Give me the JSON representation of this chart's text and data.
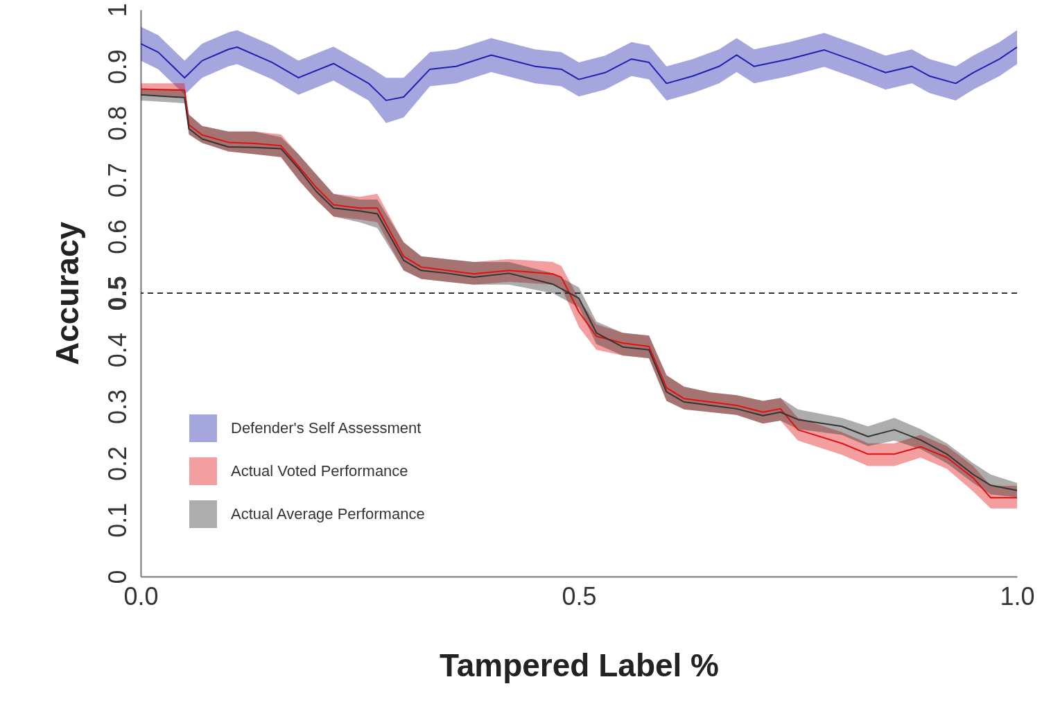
{
  "chart_data": {
    "type": "line",
    "xlabel": "Tampered Label %",
    "ylabel": "Accuracy",
    "xlim": [
      0,
      1
    ],
    "ylim": [
      0,
      1
    ],
    "xticks": [
      {
        "value": 0,
        "label": "0.0"
      },
      0.5,
      {
        "value": 1,
        "label": "1.0"
      }
    ],
    "yticks": [
      0,
      0.1,
      0.2,
      0.3,
      0.4,
      0.5,
      0.6,
      0.7,
      0.8,
      0.9,
      1
    ],
    "grid": false,
    "legend": "bottom left",
    "marker": "none",
    "line_style": "solid",
    "ref_lines": [
      {
        "axis": "y",
        "value": 0.5,
        "line_style": "dashed",
        "color": "#333333"
      }
    ],
    "series": [
      {
        "name": "Defender's Self Assessment",
        "color": "#2020b0",
        "x": [
          0,
          0.02,
          0.05,
          0.07,
          0.1,
          0.11,
          0.15,
          0.18,
          0.22,
          0.26,
          0.28,
          0.3,
          0.33,
          0.36,
          0.4,
          0.45,
          0.48,
          0.5,
          0.53,
          0.56,
          0.58,
          0.6,
          0.63,
          0.66,
          0.68,
          0.7,
          0.74,
          0.78,
          0.82,
          0.85,
          0.88,
          0.9,
          0.93,
          0.95,
          0.98,
          1
        ],
        "values": [
          0.94,
          0.925,
          0.88,
          0.91,
          0.93,
          0.934,
          0.907,
          0.88,
          0.905,
          0.87,
          0.84,
          0.846,
          0.895,
          0.9,
          0.92,
          0.9,
          0.895,
          0.877,
          0.889,
          0.913,
          0.907,
          0.87,
          0.883,
          0.9,
          0.92,
          0.9,
          0.913,
          0.929,
          0.907,
          0.889,
          0.9,
          0.883,
          0.87,
          0.889,
          0.913,
          0.934
        ],
        "lower": [
          0.91,
          0.895,
          0.85,
          0.88,
          0.9,
          0.904,
          0.877,
          0.85,
          0.875,
          0.84,
          0.8,
          0.81,
          0.865,
          0.87,
          0.89,
          0.87,
          0.865,
          0.847,
          0.859,
          0.883,
          0.877,
          0.84,
          0.853,
          0.87,
          0.89,
          0.87,
          0.883,
          0.899,
          0.877,
          0.859,
          0.87,
          0.853,
          0.84,
          0.859,
          0.883,
          0.904
        ],
        "upper": [
          0.97,
          0.955,
          0.91,
          0.94,
          0.96,
          0.964,
          0.937,
          0.91,
          0.935,
          0.9,
          0.88,
          0.88,
          0.925,
          0.93,
          0.95,
          0.93,
          0.925,
          0.907,
          0.919,
          0.943,
          0.937,
          0.9,
          0.913,
          0.93,
          0.95,
          0.93,
          0.943,
          0.959,
          0.937,
          0.919,
          0.93,
          0.913,
          0.9,
          0.919,
          0.943,
          0.964
        ]
      },
      {
        "name": "Actual Voted Performance",
        "color": "#e01010",
        "x": [
          0,
          0.05,
          0.055,
          0.07,
          0.1,
          0.13,
          0.16,
          0.18,
          0.2,
          0.22,
          0.25,
          0.27,
          0.3,
          0.32,
          0.35,
          0.38,
          0.42,
          0.47,
          0.48,
          0.5,
          0.52,
          0.55,
          0.58,
          0.6,
          0.62,
          0.65,
          0.68,
          0.71,
          0.73,
          0.75,
          0.8,
          0.83,
          0.86,
          0.89,
          0.92,
          0.95,
          0.97,
          1
        ],
        "values": [
          0.86,
          0.858,
          0.797,
          0.779,
          0.766,
          0.764,
          0.76,
          0.724,
          0.687,
          0.656,
          0.65,
          0.65,
          0.565,
          0.546,
          0.54,
          0.534,
          0.54,
          0.534,
          0.528,
          0.467,
          0.424,
          0.412,
          0.406,
          0.333,
          0.314,
          0.308,
          0.302,
          0.29,
          0.296,
          0.259,
          0.235,
          0.216,
          0.216,
          0.229,
          0.21,
          0.174,
          0.139,
          0.139
        ],
        "lower": [
          0.85,
          0.845,
          0.78,
          0.765,
          0.75,
          0.745,
          0.74,
          0.7,
          0.665,
          0.635,
          0.63,
          0.625,
          0.54,
          0.525,
          0.52,
          0.515,
          0.52,
          0.515,
          0.51,
          0.44,
          0.4,
          0.39,
          0.385,
          0.31,
          0.295,
          0.29,
          0.285,
          0.27,
          0.275,
          0.24,
          0.215,
          0.195,
          0.195,
          0.21,
          0.19,
          0.15,
          0.12,
          0.12
        ],
        "upper": [
          0.87,
          0.87,
          0.815,
          0.795,
          0.785,
          0.785,
          0.78,
          0.745,
          0.71,
          0.675,
          0.67,
          0.675,
          0.59,
          0.565,
          0.56,
          0.555,
          0.56,
          0.555,
          0.548,
          0.49,
          0.445,
          0.43,
          0.425,
          0.355,
          0.335,
          0.325,
          0.32,
          0.31,
          0.315,
          0.28,
          0.255,
          0.235,
          0.235,
          0.25,
          0.23,
          0.195,
          0.16,
          0.16
        ]
      },
      {
        "name": "Actual Average Performance",
        "color": "#333333",
        "x": [
          0,
          0.05,
          0.055,
          0.07,
          0.1,
          0.13,
          0.16,
          0.18,
          0.2,
          0.22,
          0.25,
          0.27,
          0.3,
          0.32,
          0.35,
          0.38,
          0.42,
          0.47,
          0.5,
          0.52,
          0.55,
          0.58,
          0.6,
          0.62,
          0.65,
          0.68,
          0.71,
          0.73,
          0.75,
          0.8,
          0.83,
          0.86,
          0.89,
          0.92,
          0.95,
          0.97,
          1
        ],
        "values": [
          0.85,
          0.845,
          0.79,
          0.772,
          0.758,
          0.757,
          0.755,
          0.72,
          0.68,
          0.65,
          0.645,
          0.64,
          0.558,
          0.54,
          0.535,
          0.528,
          0.535,
          0.516,
          0.491,
          0.43,
          0.405,
          0.4,
          0.326,
          0.308,
          0.302,
          0.296,
          0.284,
          0.29,
          0.277,
          0.265,
          0.247,
          0.259,
          0.241,
          0.216,
          0.18,
          0.161,
          0.152
        ],
        "lower": [
          0.84,
          0.835,
          0.78,
          0.765,
          0.75,
          0.745,
          0.74,
          0.7,
          0.665,
          0.635,
          0.625,
          0.615,
          0.54,
          0.525,
          0.52,
          0.515,
          0.515,
          0.5,
          0.475,
          0.41,
          0.39,
          0.385,
          0.31,
          0.295,
          0.29,
          0.285,
          0.27,
          0.275,
          0.26,
          0.25,
          0.23,
          0.24,
          0.225,
          0.2,
          0.165,
          0.145,
          0.14
        ],
        "upper": [
          0.86,
          0.86,
          0.815,
          0.795,
          0.785,
          0.785,
          0.775,
          0.745,
          0.71,
          0.675,
          0.665,
          0.665,
          0.59,
          0.565,
          0.56,
          0.555,
          0.555,
          0.535,
          0.51,
          0.45,
          0.43,
          0.425,
          0.355,
          0.335,
          0.325,
          0.32,
          0.31,
          0.315,
          0.295,
          0.28,
          0.265,
          0.28,
          0.26,
          0.235,
          0.2,
          0.18,
          0.165
        ]
      }
    ]
  }
}
